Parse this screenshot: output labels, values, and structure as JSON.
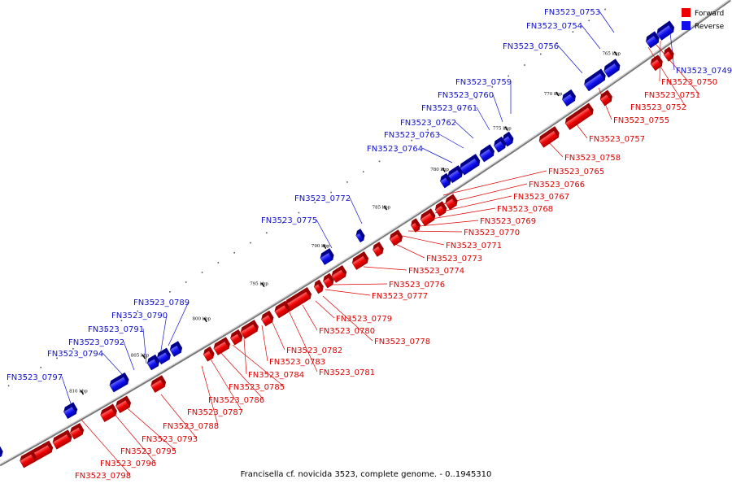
{
  "caption": "Francisella cf. novicida 3523, complete genome. - 0..1945310",
  "colors": {
    "forward": "#ee0000",
    "reverse": "#1010ee",
    "backbone": "#777777"
  },
  "legend": [
    {
      "label": "Forward",
      "color": "#ee0000"
    },
    {
      "label": "Reverse",
      "color": "#1010ee"
    }
  ],
  "ticks": [
    "765 kbp",
    "770 kbp",
    "775 kbp",
    "780 kbp",
    "785 kbp",
    "790 kbp",
    "795 kbp",
    "800 kbp",
    "805 kbp",
    "810 kbp"
  ],
  "reverse_genes": [
    "FN3523_0749",
    "FN3523_0753",
    "FN3523_0754",
    "FN3523_0756",
    "FN3523_0759",
    "FN3523_0760",
    "FN3523_0761",
    "FN3523_0762",
    "FN3523_0763",
    "FN3523_0764",
    "FN3523_0772",
    "FN3523_0775",
    "FN3523_0789",
    "FN3523_0790",
    "FN3523_0791",
    "FN3523_0792",
    "FN3523_0794",
    "FN3523_0797"
  ],
  "forward_genes": [
    "FN3523_0750",
    "FN3523_0751",
    "FN3523_0752",
    "FN3523_0755",
    "FN3523_0757",
    "FN3523_0758",
    "FN3523_0765",
    "FN3523_0766",
    "FN3523_0767",
    "FN3523_0768",
    "FN3523_0769",
    "FN3523_0770",
    "FN3523_0771",
    "FN3523_0773",
    "FN3523_0774",
    "FN3523_0776",
    "FN3523_0777",
    "FN3523_0778",
    "FN3523_0779",
    "FN3523_0780",
    "FN3523_0781",
    "FN3523_0782",
    "FN3523_0783",
    "FN3523_0784",
    "FN3523_0785",
    "FN3523_0786",
    "FN3523_0787",
    "FN3523_0788",
    "FN3523_0793",
    "FN3523_0795",
    "FN3523_0796",
    "FN3523_0798"
  ]
}
